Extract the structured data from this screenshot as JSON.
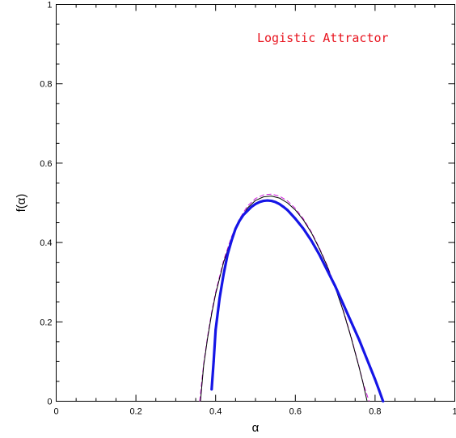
{
  "chart_data": {
    "type": "line",
    "title": "",
    "annotation": "Logistic Attractor",
    "annotation_color": "#e8141f",
    "xlabel": "α",
    "ylabel": "f(α)",
    "xlim": [
      0,
      1
    ],
    "ylim": [
      0,
      1
    ],
    "x_ticks": [
      0,
      0.2,
      0.4,
      0.6,
      0.8,
      1
    ],
    "x_tick_labels": [
      "0",
      "0.2",
      "0.4",
      "0.6",
      "0.8",
      "1"
    ],
    "y_ticks": [
      0,
      0.2,
      0.4,
      0.6,
      0.8,
      1
    ],
    "y_tick_labels": [
      "0",
      "0.2",
      "0.4",
      "0.6",
      "0.8",
      "1"
    ],
    "grid": false,
    "series": [
      {
        "style": "dots",
        "color": "#1515e6",
        "x": [
          0.39,
          0.395,
          0.4,
          0.41,
          0.42,
          0.43,
          0.44,
          0.45,
          0.46,
          0.47,
          0.48,
          0.49,
          0.5,
          0.51,
          0.52,
          0.53,
          0.54,
          0.55,
          0.56,
          0.57,
          0.58,
          0.6,
          0.62,
          0.64,
          0.66,
          0.68,
          0.7,
          0.72,
          0.74,
          0.76,
          0.78,
          0.8,
          0.81,
          0.82
        ],
        "y": [
          0.03,
          0.1,
          0.18,
          0.26,
          0.32,
          0.37,
          0.405,
          0.435,
          0.455,
          0.47,
          0.48,
          0.49,
          0.497,
          0.502,
          0.505,
          0.506,
          0.505,
          0.502,
          0.497,
          0.49,
          0.482,
          0.46,
          0.435,
          0.405,
          0.37,
          0.33,
          0.29,
          0.245,
          0.2,
          0.155,
          0.105,
          0.055,
          0.028,
          0.0
        ]
      },
      {
        "style": "solid",
        "color": "#000000",
        "x": [
          0.362,
          0.37,
          0.38,
          0.39,
          0.4,
          0.42,
          0.44,
          0.46,
          0.48,
          0.5,
          0.52,
          0.54,
          0.56,
          0.58,
          0.6,
          0.62,
          0.64,
          0.66,
          0.68,
          0.7,
          0.72,
          0.74,
          0.76,
          0.77,
          0.78
        ],
        "y": [
          0.0,
          0.09,
          0.16,
          0.22,
          0.27,
          0.35,
          0.41,
          0.455,
          0.487,
          0.506,
          0.515,
          0.517,
          0.512,
          0.5,
          0.482,
          0.457,
          0.425,
          0.385,
          0.34,
          0.287,
          0.228,
          0.16,
          0.085,
          0.045,
          0.0
        ]
      },
      {
        "style": "dashed",
        "color": "#d01adf",
        "x": [
          0.36,
          0.37,
          0.38,
          0.39,
          0.4,
          0.42,
          0.44,
          0.46,
          0.48,
          0.5,
          0.52,
          0.54,
          0.56,
          0.58,
          0.6,
          0.62,
          0.64,
          0.66,
          0.68,
          0.7,
          0.72,
          0.74,
          0.76,
          0.77,
          0.785
        ],
        "y": [
          0.0,
          0.095,
          0.165,
          0.225,
          0.275,
          0.355,
          0.415,
          0.46,
          0.492,
          0.511,
          0.52,
          0.522,
          0.517,
          0.505,
          0.486,
          0.46,
          0.427,
          0.387,
          0.342,
          0.289,
          0.23,
          0.162,
          0.087,
          0.046,
          0.0
        ]
      }
    ]
  }
}
